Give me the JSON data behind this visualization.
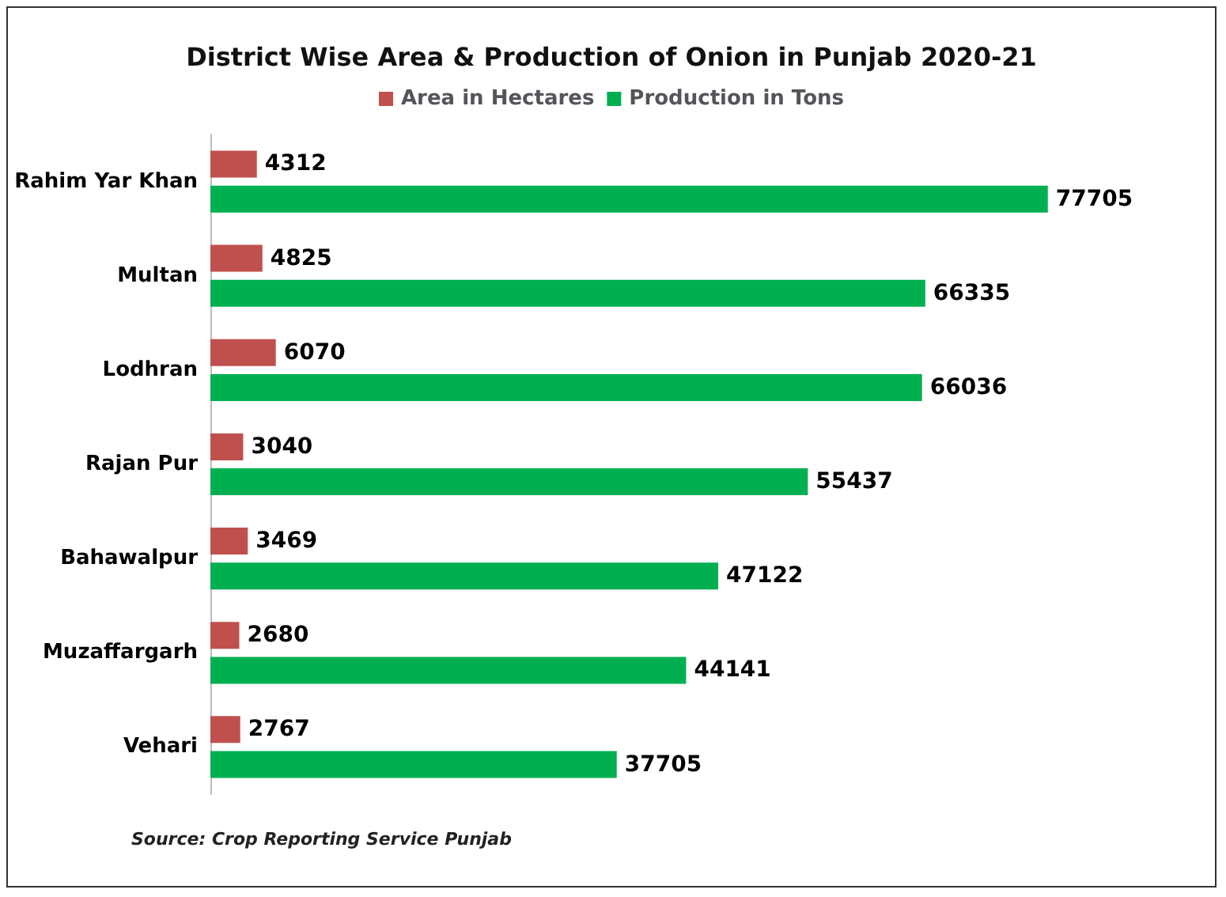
{
  "chart_data": {
    "type": "bar",
    "orientation": "horizontal",
    "title": "District Wise Area & Production of Onion in Punjab 2020-21",
    "categories": [
      "Rahim Yar Khan",
      "Multan",
      "Lodhran",
      "Rajan Pur",
      "Bahawalpur",
      "Muzaffargarh",
      "Vehari"
    ],
    "series": [
      {
        "name": "Area in Hectares",
        "color": "#c0504d",
        "values": [
          4312,
          4825,
          6070,
          3040,
          3469,
          2680,
          2767
        ]
      },
      {
        "name": "Production in Tons",
        "color": "#00b050",
        "values": [
          77705,
          66335,
          66036,
          55437,
          47122,
          44141,
          37705
        ]
      }
    ],
    "data_labels": true,
    "legend": "top",
    "tick_labels": "y",
    "annotations": [
      "Source: Crop Reporting Service Punjab"
    ]
  }
}
